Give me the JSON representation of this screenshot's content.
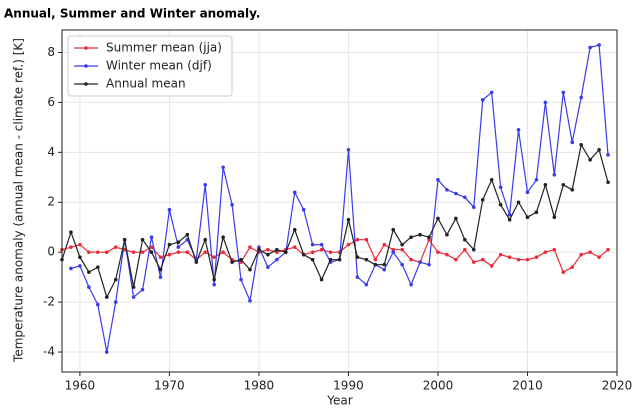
{
  "chart_data": {
    "type": "line",
    "title": "Annual, Summer and Winter anomaly.",
    "x_label": "Year",
    "y_label": "Temperature anomaly (annual mean - climate ref.) [K]",
    "x": [
      1958,
      1959,
      1960,
      1961,
      1962,
      1963,
      1964,
      1965,
      1966,
      1967,
      1968,
      1969,
      1970,
      1971,
      1972,
      1973,
      1974,
      1975,
      1976,
      1977,
      1978,
      1979,
      1980,
      1981,
      1982,
      1983,
      1984,
      1985,
      1986,
      1987,
      1988,
      1989,
      1990,
      1991,
      1992,
      1993,
      1994,
      1995,
      1996,
      1997,
      1998,
      1999,
      2000,
      2001,
      2002,
      2003,
      2004,
      2005,
      2006,
      2007,
      2008,
      2009,
      2010,
      2011,
      2012,
      2013,
      2014,
      2015,
      2016,
      2017,
      2018,
      2019
    ],
    "series": [
      {
        "name": "Summer mean (jja)",
        "color": "#ee2a3a",
        "values": [
          0.1,
          0.2,
          0.3,
          0.0,
          0.0,
          0.0,
          0.2,
          0.1,
          0.0,
          0.0,
          0.2,
          -0.2,
          -0.1,
          0.0,
          0.0,
          -0.3,
          0.0,
          -0.2,
          0.0,
          -0.3,
          -0.4,
          0.2,
          0.0,
          0.1,
          0.0,
          0.1,
          0.2,
          -0.1,
          0.0,
          0.1,
          0.0,
          0.0,
          0.3,
          0.5,
          0.5,
          -0.3,
          0.3,
          0.1,
          0.1,
          -0.3,
          -0.4,
          0.5,
          0.0,
          -0.1,
          -0.3,
          0.1,
          -0.4,
          -0.3,
          -0.55,
          -0.1,
          -0.2,
          -0.3,
          -0.3,
          -0.2,
          0.0,
          0.1,
          -0.8,
          -0.6,
          -0.1,
          0.0,
          -0.2,
          0.1
        ]
      },
      {
        "name": "Winter mean (djf)",
        "color": "#3b3bee",
        "values": [
          null,
          -0.65,
          -0.55,
          -1.4,
          -2.1,
          -4.0,
          -2.0,
          0.5,
          -1.8,
          -1.5,
          0.6,
          -1.0,
          1.7,
          0.2,
          0.5,
          -0.3,
          2.7,
          -1.3,
          3.4,
          1.9,
          -1.1,
          -1.95,
          0.2,
          -0.6,
          -0.3,
          0.0,
          2.4,
          1.7,
          0.3,
          0.3,
          -0.4,
          -0.3,
          4.1,
          -1.0,
          -1.3,
          -0.5,
          -0.7,
          0.0,
          -0.5,
          -1.3,
          -0.4,
          -0.5,
          2.9,
          2.5,
          2.35,
          2.2,
          1.8,
          6.1,
          6.4,
          2.6,
          1.5,
          4.9,
          2.4,
          2.9,
          6.0,
          3.1,
          6.4,
          4.4,
          6.2,
          8.2,
          8.3,
          3.9
        ]
      },
      {
        "name": "Annual mean",
        "color": "#222222",
        "values": [
          -0.3,
          0.8,
          -0.2,
          -0.8,
          -0.6,
          -1.8,
          -1.1,
          0.5,
          -1.4,
          0.5,
          0.0,
          -0.7,
          0.3,
          0.4,
          0.7,
          -0.4,
          0.5,
          -1.1,
          0.6,
          -0.4,
          -0.3,
          -0.7,
          0.1,
          -0.1,
          0.1,
          0.0,
          0.9,
          -0.1,
          -0.3,
          -1.1,
          -0.3,
          -0.3,
          1.3,
          -0.2,
          -0.3,
          -0.5,
          -0.5,
          0.9,
          0.3,
          0.6,
          0.7,
          0.6,
          1.35,
          0.7,
          1.35,
          0.5,
          0.1,
          2.1,
          2.9,
          1.9,
          1.3,
          2.0,
          1.4,
          1.6,
          2.7,
          1.4,
          2.7,
          2.5,
          4.3,
          3.7,
          4.1,
          2.8
        ]
      }
    ],
    "xlim": [
      1958,
      2020
    ],
    "xticks": [
      1960,
      1970,
      1980,
      1990,
      2000,
      2010,
      2020
    ],
    "ylim": [
      -4.8,
      8.9
    ],
    "yticks": [
      -4,
      -2,
      0,
      2,
      4,
      6,
      8
    ],
    "grid": true,
    "legend": "upper left"
  }
}
